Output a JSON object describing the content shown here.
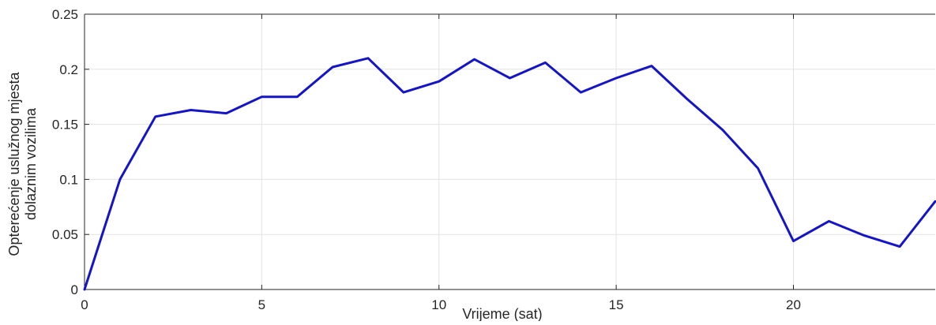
{
  "chart_data": {
    "type": "line",
    "title": "",
    "xlabel": "Vrijeme (sat)",
    "ylabel_lines": [
      "Opterećenje uslužnog mjesta",
      "dolaznim vozilima"
    ],
    "xlim": [
      0,
      24
    ],
    "ylim": [
      0,
      0.25
    ],
    "xticks": [
      0,
      5,
      10,
      15,
      20
    ],
    "xtick_labels": [
      "0",
      "5",
      "10",
      "15",
      "20"
    ],
    "yticks": [
      0,
      0.05,
      0.1,
      0.15,
      0.2,
      0.25
    ],
    "ytick_labels": [
      "0",
      "0.05",
      "0.1",
      "0.15",
      "0.2",
      "0.25"
    ],
    "grid": true,
    "legend": "none",
    "series": [
      {
        "color": "#1515c8",
        "x": [
          0,
          1,
          2,
          3,
          4,
          5,
          6,
          7,
          8,
          9,
          10,
          11,
          12,
          13,
          14,
          15,
          16,
          17,
          18,
          19,
          20,
          21,
          22,
          23,
          24
        ],
        "y": [
          0,
          0.1,
          0.157,
          0.163,
          0.16,
          0.175,
          0.175,
          0.202,
          0.21,
          0.179,
          0.189,
          0.209,
          0.192,
          0.206,
          0.179,
          0.192,
          0.203,
          0.173,
          0.145,
          0.11,
          0.044,
          0.062,
          0.049,
          0.039,
          0.08
        ]
      }
    ]
  }
}
